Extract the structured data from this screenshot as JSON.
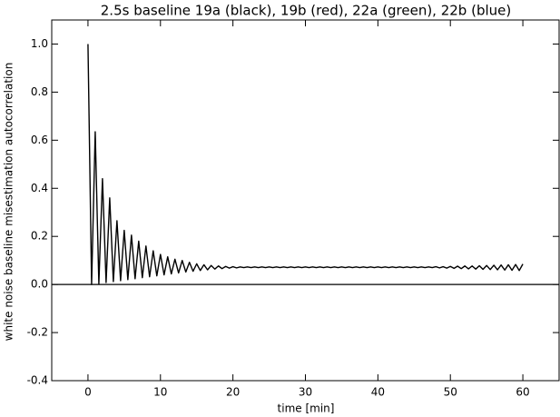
{
  "chart_data": {
    "type": "line",
    "title": "2.5s baseline 19a (black), 19b (red), 22a (green), 22b (blue)",
    "xlabel": "time [min]",
    "ylabel": "white noise baseline misestimation autocorrelation",
    "xlim": [
      -5,
      65
    ],
    "xticks": [
      0,
      10,
      20,
      30,
      40,
      50,
      60
    ],
    "ylim": [
      -0.4,
      1.1
    ],
    "yticks": [
      -0.4,
      -0.2,
      {
        "value": 0,
        "label": "0.0"
      },
      0.2,
      0.4,
      0.6,
      0.8,
      {
        "value": 1,
        "label": "1.0"
      }
    ],
    "hlines": [
      0
    ],
    "x": [
      0,
      0.5,
      1,
      1.5,
      2,
      2.5,
      3,
      3.5,
      4,
      4.5,
      5,
      5.5,
      6,
      6.5,
      7,
      7.5,
      8,
      8.5,
      9,
      9.5,
      10,
      10.5,
      11,
      11.5,
      12,
      12.5,
      13,
      13.5,
      14,
      14.5,
      15,
      15.5,
      16,
      16.5,
      17,
      17.5,
      18,
      18.5,
      19,
      19.5,
      20,
      20.5,
      21,
      21.5,
      22,
      22.5,
      23,
      23.5,
      24,
      24.5,
      25,
      25.5,
      26,
      26.5,
      27,
      27.5,
      28,
      28.5,
      29,
      29.5,
      30,
      30.5,
      31,
      31.5,
      32,
      32.5,
      33,
      33.5,
      34,
      34.5,
      35,
      35.5,
      36,
      36.5,
      37,
      37.5,
      38,
      38.5,
      39,
      39.5,
      40,
      40.5,
      41,
      41.5,
      42,
      42.5,
      43,
      43.5,
      44,
      44.5,
      45,
      45.5,
      46,
      46.5,
      47,
      47.5,
      48,
      48.5,
      49,
      49.5,
      50,
      50.5,
      51,
      51.5,
      52,
      52.5,
      53,
      53.5,
      54,
      54.5,
      55,
      55.5,
      56,
      56.5,
      57,
      57.5,
      58,
      58.5,
      59,
      59.5,
      60
    ],
    "series": [
      {
        "color": "#000000",
        "values": [
          1.0,
          0.0,
          0.635,
          0.003,
          0.44,
          0.008,
          0.36,
          0.012,
          0.265,
          0.016,
          0.225,
          0.02,
          0.205,
          0.024,
          0.18,
          0.028,
          0.16,
          0.032,
          0.14,
          0.036,
          0.125,
          0.04,
          0.115,
          0.044,
          0.105,
          0.048,
          0.1,
          0.052,
          0.092,
          0.055,
          0.086,
          0.058,
          0.082,
          0.061,
          0.079,
          0.064,
          0.077,
          0.066,
          0.075,
          0.068,
          0.074,
          0.069,
          0.073,
          0.07,
          0.073,
          0.07,
          0.073,
          0.07,
          0.073,
          0.07,
          0.073,
          0.07,
          0.073,
          0.07,
          0.073,
          0.07,
          0.073,
          0.07,
          0.073,
          0.07,
          0.073,
          0.07,
          0.073,
          0.07,
          0.073,
          0.07,
          0.073,
          0.07,
          0.073,
          0.07,
          0.073,
          0.07,
          0.073,
          0.07,
          0.073,
          0.07,
          0.073,
          0.07,
          0.073,
          0.07,
          0.073,
          0.07,
          0.073,
          0.07,
          0.073,
          0.07,
          0.073,
          0.07,
          0.073,
          0.07,
          0.073,
          0.07,
          0.073,
          0.07,
          0.073,
          0.07,
          0.074,
          0.069,
          0.074,
          0.068,
          0.075,
          0.067,
          0.076,
          0.066,
          0.077,
          0.065,
          0.077,
          0.064,
          0.078,
          0.063,
          0.079,
          0.062,
          0.08,
          0.061,
          0.081,
          0.06,
          0.082,
          0.059,
          0.083,
          0.058,
          0.085
        ]
      }
    ]
  }
}
